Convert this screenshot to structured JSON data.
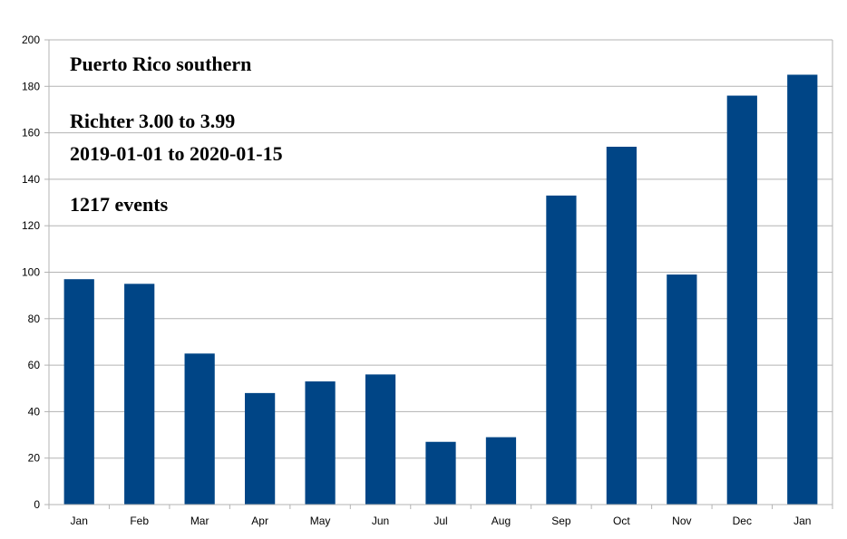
{
  "chart_data": {
    "type": "bar",
    "categories": [
      "Jan",
      "Feb",
      "Mar",
      "Apr",
      "May",
      "Jun",
      "Jul",
      "Aug",
      "Sep",
      "Oct",
      "Nov",
      "Dec",
      "Jan"
    ],
    "values": [
      97,
      95,
      65,
      48,
      53,
      56,
      27,
      29,
      133,
      154,
      99,
      176,
      185
    ],
    "ylim": [
      0,
      200
    ],
    "yticks": [
      0,
      20,
      40,
      60,
      80,
      100,
      120,
      140,
      160,
      180,
      200
    ],
    "grid": true,
    "legend": "none",
    "bar_color": "#004586",
    "grid_color": "#b3b3b3",
    "title": "",
    "xlabel": "",
    "ylabel": "",
    "annotations": [
      "Puerto Rico southern",
      "Richter 3.00 to 3.99",
      "2019-01-01 to 2020-01-15",
      "1217 events"
    ]
  }
}
